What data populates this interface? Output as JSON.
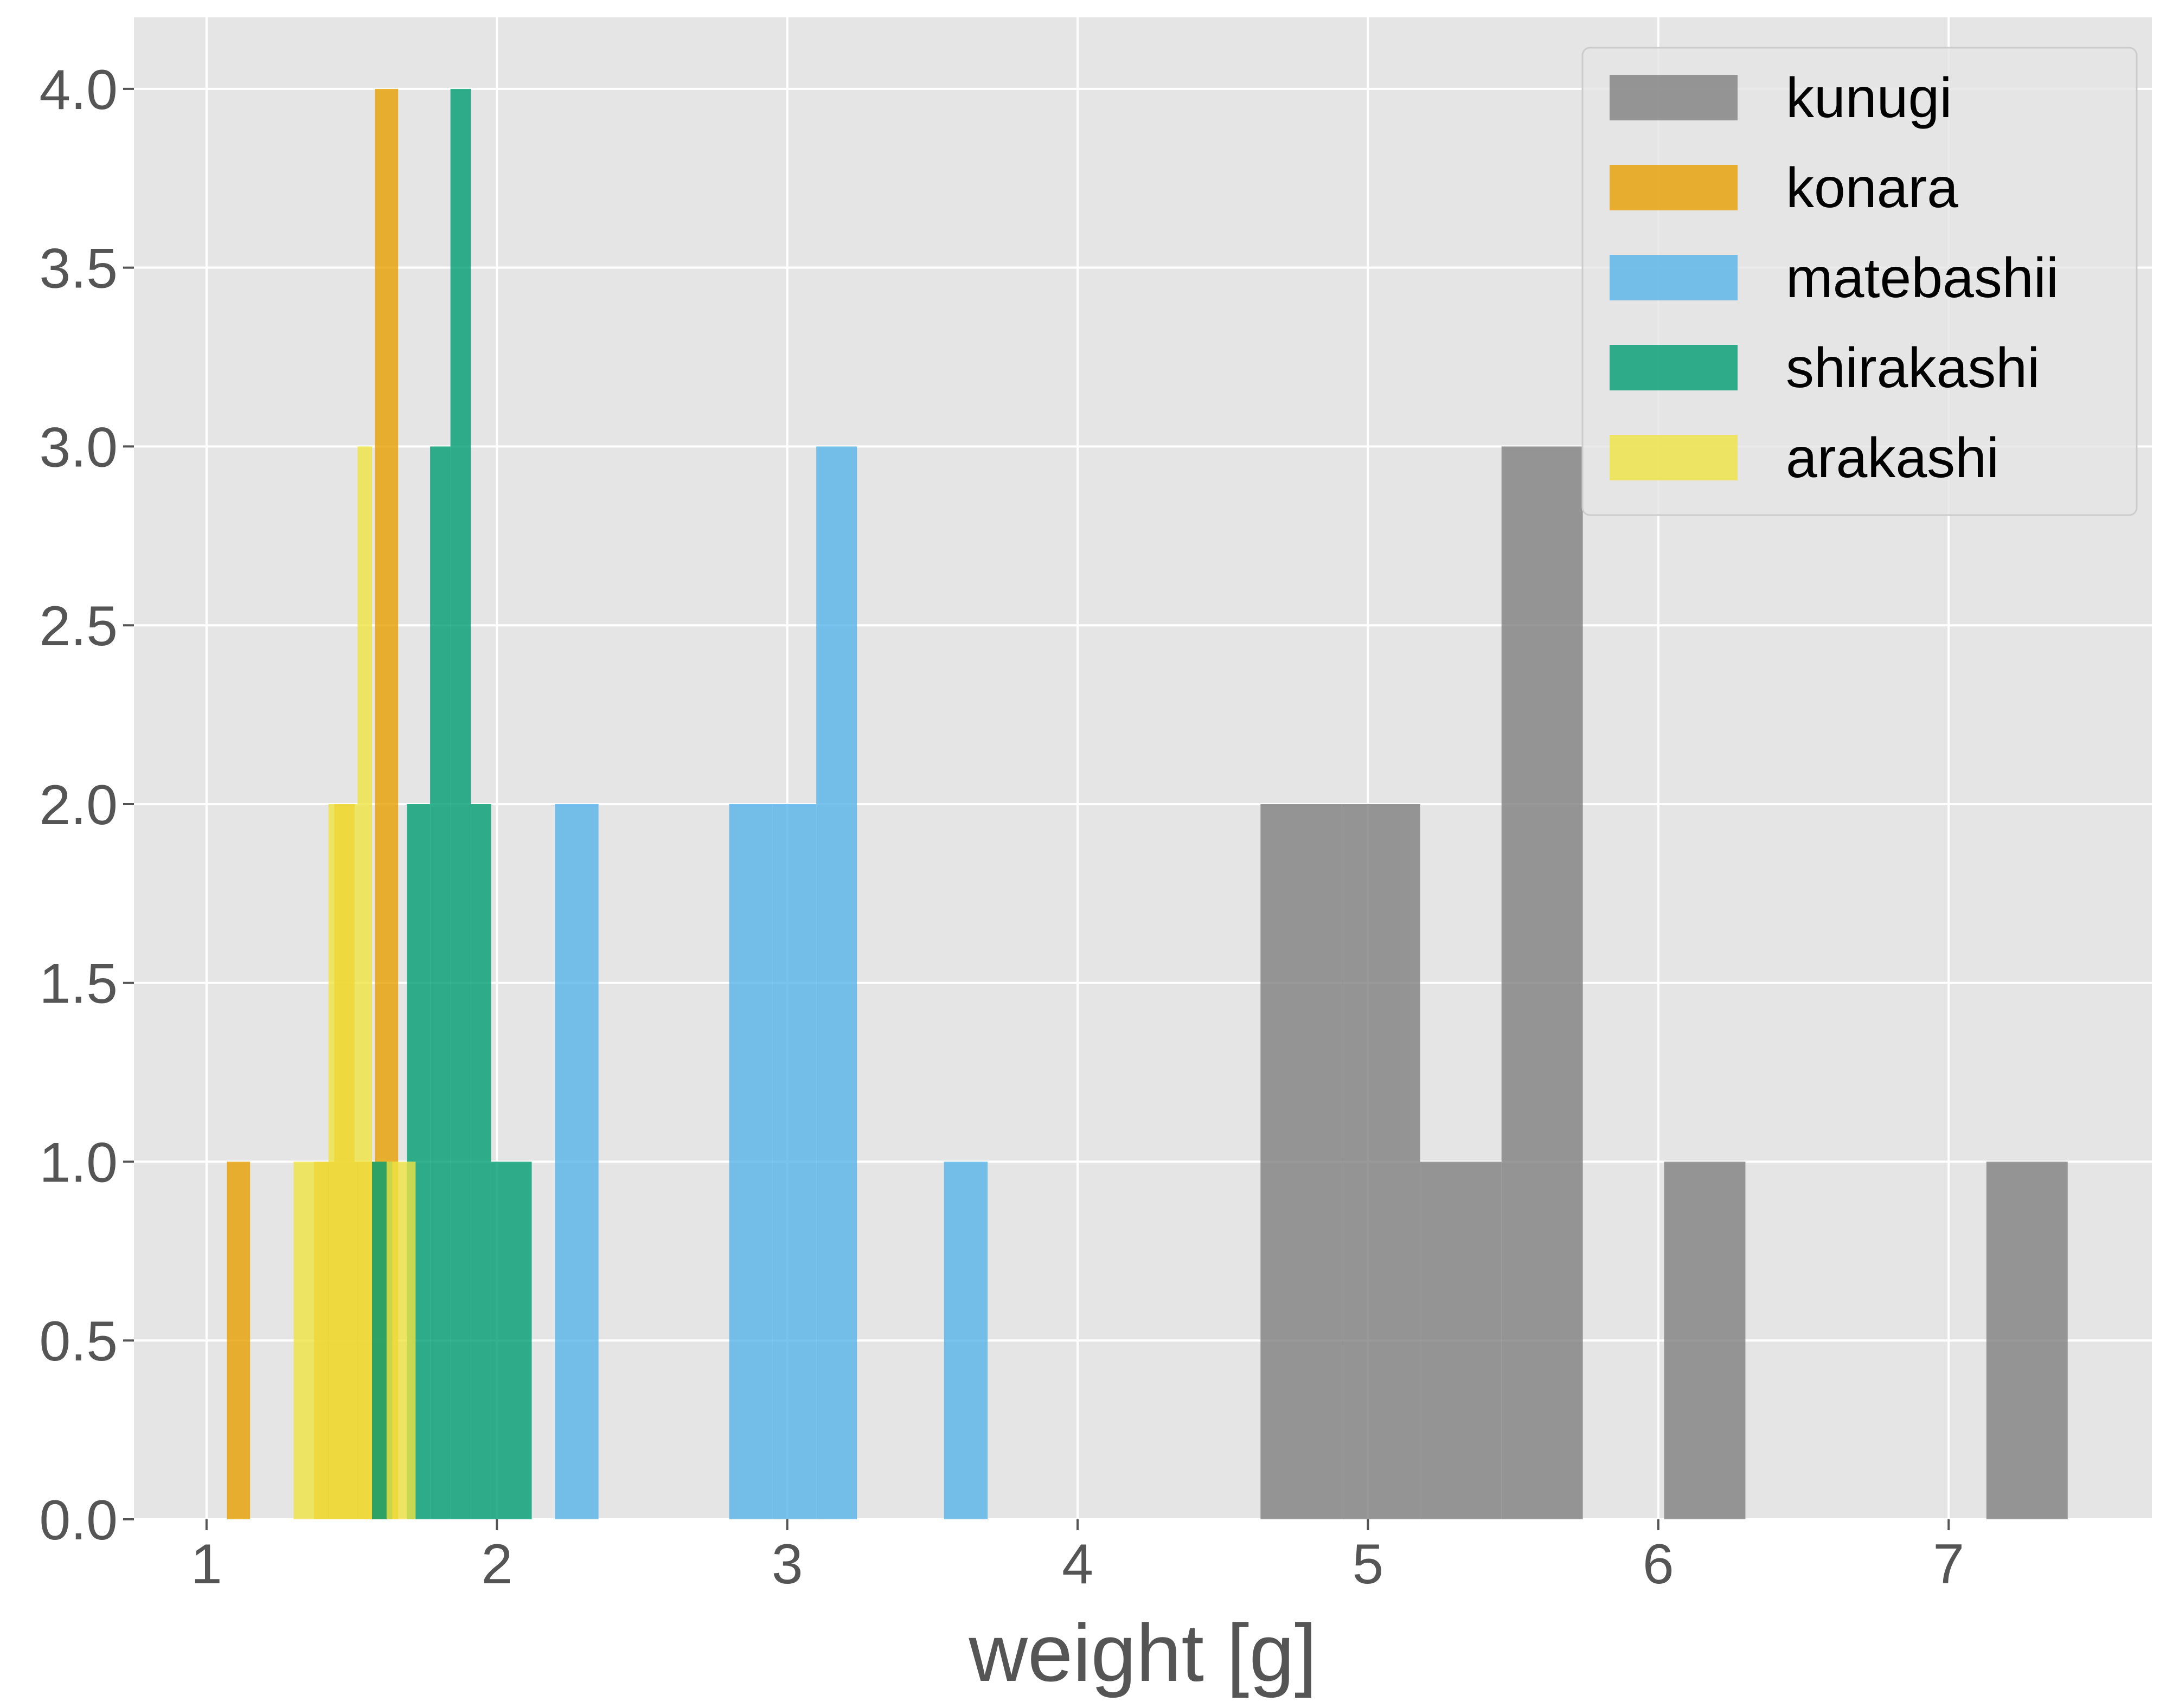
{
  "chart_data": {
    "type": "bar",
    "subtype": "overlapping-histogram",
    "title": "",
    "xlabel": "weight [g]",
    "ylabel": "",
    "xlim": [
      0.75,
      7.7
    ],
    "ylim": [
      0,
      4.2
    ],
    "xticks": [
      "1",
      "2",
      "3",
      "4",
      "5",
      "6",
      "7"
    ],
    "yticks": [
      "0.0",
      "0.5",
      "1.0",
      "1.5",
      "2.0",
      "2.5",
      "3.0",
      "3.5",
      "4.0"
    ],
    "grid": true,
    "background": "#e5e5e5",
    "legend_position": "top-right",
    "series": [
      {
        "name": "kunugi",
        "color": "#808080",
        "bins": [
          {
            "x0": 4.63,
            "x1": 4.91,
            "count": 2
          },
          {
            "x0": 4.91,
            "x1": 5.18,
            "count": 2
          },
          {
            "x0": 5.18,
            "x1": 5.46,
            "count": 1
          },
          {
            "x0": 5.46,
            "x1": 5.74,
            "count": 3
          },
          {
            "x0": 6.02,
            "x1": 6.3,
            "count": 1
          },
          {
            "x0": 7.13,
            "x1": 7.41,
            "count": 1
          }
        ]
      },
      {
        "name": "konara",
        "color": "#e69f00",
        "bins": [
          {
            "x0": 1.07,
            "x1": 1.15,
            "count": 1
          },
          {
            "x0": 1.37,
            "x1": 1.44,
            "count": 1
          },
          {
            "x0": 1.44,
            "x1": 1.51,
            "count": 2
          },
          {
            "x0": 1.51,
            "x1": 1.58,
            "count": 1
          },
          {
            "x0": 1.58,
            "x1": 1.66,
            "count": 4
          }
        ]
      },
      {
        "name": "matebashii",
        "color": "#56b4e9",
        "bins": [
          {
            "x0": 2.2,
            "x1": 2.35,
            "count": 2
          },
          {
            "x0": 2.8,
            "x1": 2.95,
            "count": 2
          },
          {
            "x0": 2.95,
            "x1": 3.1,
            "count": 2
          },
          {
            "x0": 3.1,
            "x1": 3.24,
            "count": 3
          },
          {
            "x0": 3.54,
            "x1": 3.69,
            "count": 1
          }
        ]
      },
      {
        "name": "shirakashi",
        "color": "#009e73",
        "bins": [
          {
            "x0": 1.57,
            "x1": 1.64,
            "count": 1
          },
          {
            "x0": 1.69,
            "x1": 1.77,
            "count": 2
          },
          {
            "x0": 1.77,
            "x1": 1.84,
            "count": 3
          },
          {
            "x0": 1.84,
            "x1": 1.91,
            "count": 4
          },
          {
            "x0": 1.91,
            "x1": 1.98,
            "count": 2
          },
          {
            "x0": 1.98,
            "x1": 2.12,
            "count": 1
          }
        ]
      },
      {
        "name": "arakashi",
        "color": "#f0e442",
        "bins": [
          {
            "x0": 1.3,
            "x1": 1.37,
            "count": 1
          },
          {
            "x0": 1.37,
            "x1": 1.42,
            "count": 1
          },
          {
            "x0": 1.42,
            "x1": 1.47,
            "count": 2
          },
          {
            "x0": 1.47,
            "x1": 1.52,
            "count": 2
          },
          {
            "x0": 1.52,
            "x1": 1.57,
            "count": 3
          },
          {
            "x0": 1.62,
            "x1": 1.67,
            "count": 1
          },
          {
            "x0": 1.67,
            "x1": 1.72,
            "count": 1
          }
        ]
      }
    ]
  }
}
